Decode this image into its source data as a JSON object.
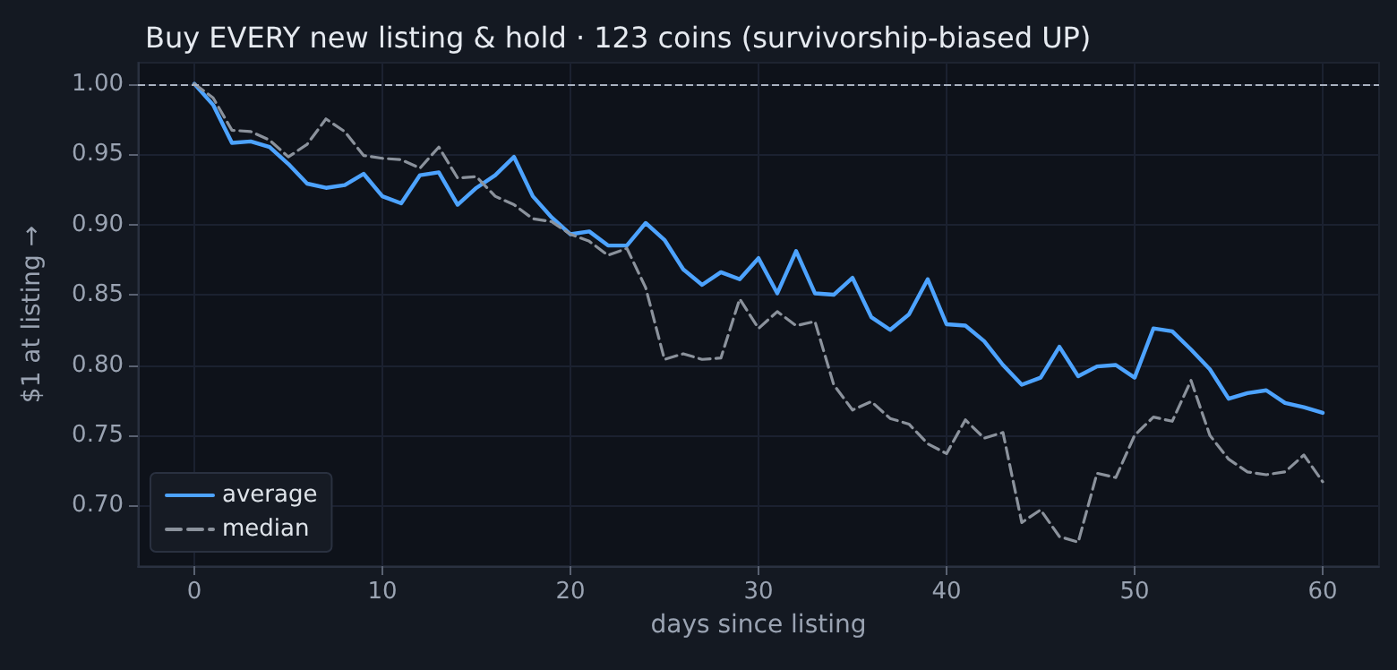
{
  "chart_data": {
    "type": "line",
    "title": "Buy EVERY new listing & hold · 123 coins (survivorship-biased UP)",
    "xlabel": "days since listing",
    "ylabel": "$1 at listing →",
    "x": [
      0,
      1,
      2,
      3,
      4,
      5,
      6,
      7,
      8,
      9,
      10,
      11,
      12,
      13,
      14,
      15,
      16,
      17,
      18,
      19,
      20,
      21,
      22,
      23,
      24,
      25,
      26,
      27,
      28,
      29,
      30,
      31,
      32,
      33,
      34,
      35,
      36,
      37,
      38,
      39,
      40,
      41,
      42,
      43,
      44,
      45,
      46,
      47,
      48,
      49,
      50,
      51,
      52,
      53,
      54,
      55,
      56,
      57,
      58,
      59,
      60
    ],
    "series": [
      {
        "name": "average",
        "color": "#4da3ff",
        "line_style": "solid",
        "values": [
          1.0,
          0.985,
          0.958,
          0.959,
          0.955,
          0.943,
          0.929,
          0.926,
          0.928,
          0.936,
          0.92,
          0.915,
          0.935,
          0.937,
          0.914,
          0.926,
          0.935,
          0.948,
          0.92,
          0.905,
          0.893,
          0.895,
          0.885,
          0.885,
          0.901,
          0.889,
          0.868,
          0.857,
          0.866,
          0.861,
          0.876,
          0.851,
          0.881,
          0.851,
          0.85,
          0.862,
          0.834,
          0.825,
          0.836,
          0.861,
          0.829,
          0.828,
          0.817,
          0.8,
          0.786,
          0.791,
          0.813,
          0.792,
          0.799,
          0.8,
          0.791,
          0.826,
          0.824,
          0.811,
          0.797,
          0.776,
          0.78,
          0.782,
          0.773,
          0.77,
          0.766
        ]
      },
      {
        "name": "median",
        "color": "#8b929c",
        "line_style": "dashed",
        "values": [
          1.0,
          0.99,
          0.967,
          0.966,
          0.96,
          0.948,
          0.957,
          0.975,
          0.966,
          0.949,
          0.947,
          0.946,
          0.94,
          0.955,
          0.933,
          0.934,
          0.92,
          0.914,
          0.904,
          0.902,
          0.893,
          0.888,
          0.878,
          0.883,
          0.855,
          0.804,
          0.808,
          0.804,
          0.805,
          0.847,
          0.826,
          0.838,
          0.828,
          0.831,
          0.786,
          0.768,
          0.774,
          0.762,
          0.758,
          0.744,
          0.737,
          0.761,
          0.748,
          0.752,
          0.688,
          0.697,
          0.678,
          0.674,
          0.723,
          0.72,
          0.75,
          0.763,
          0.76,
          0.789,
          0.75,
          0.733,
          0.724,
          0.722,
          0.724,
          0.736,
          0.717
        ]
      }
    ],
    "xlim": [
      -3,
      63
    ],
    "xticks": [
      0,
      10,
      20,
      30,
      40,
      50,
      60
    ],
    "ylim": [
      0.657,
      1.015
    ],
    "yticks": [
      {
        "value": 0.7,
        "label": "0.70"
      },
      {
        "value": 0.75,
        "label": "0.75"
      },
      {
        "value": 0.8,
        "label": "0.80"
      },
      {
        "value": 0.85,
        "label": "0.85"
      },
      {
        "value": 0.9,
        "label": "0.90"
      },
      {
        "value": 0.95,
        "label": "0.95"
      },
      {
        "value": 1.0,
        "label": "1.00"
      }
    ],
    "ref_lines": [
      {
        "axis": "y",
        "value": 1.0,
        "color": "#aab2c0",
        "line_style": "dashed"
      }
    ],
    "grid": true,
    "legend": "bottom left",
    "marker": "none"
  }
}
